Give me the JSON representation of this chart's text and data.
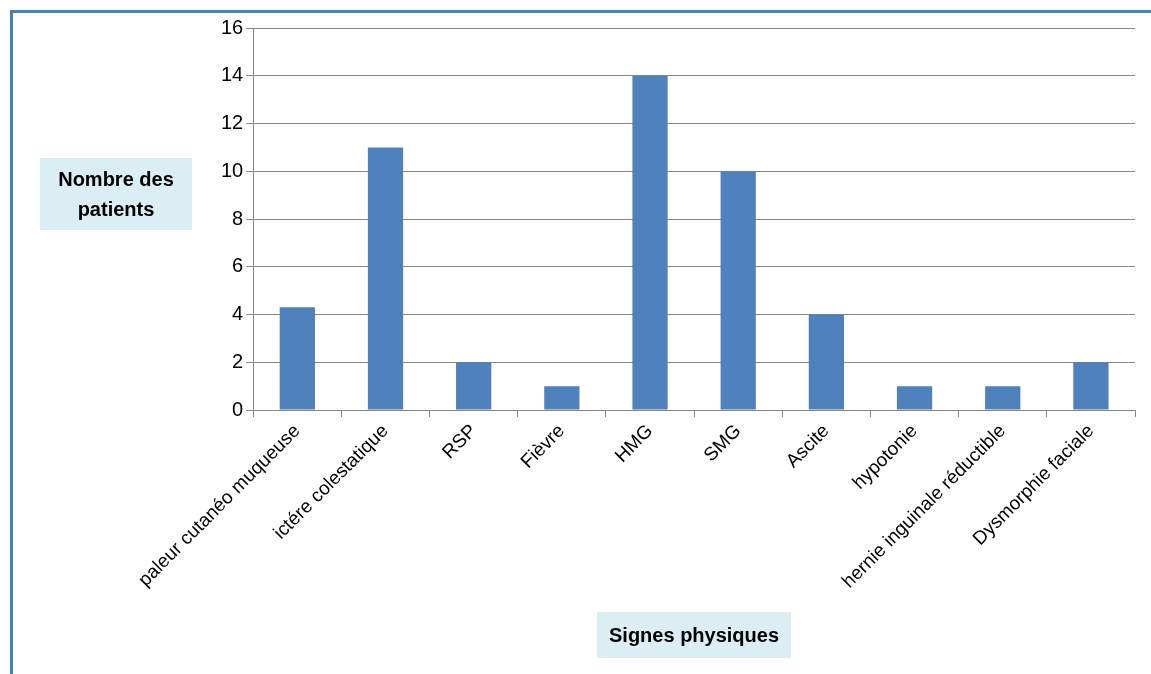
{
  "chart_data": {
    "type": "bar",
    "xlabel": "Signes physiques",
    "ylabel": "Nombre des patients",
    "categories": [
      "paleur cutanéo muqueuse",
      "ictére colestatique",
      "RSP",
      "Fièvre",
      "HMG",
      "SMG",
      "Ascite",
      "hypotonie",
      "hernie inguinale réductible",
      "Dysmorphie faciale"
    ],
    "values": [
      4.3,
      11,
      2,
      1,
      14,
      10,
      4,
      1,
      1,
      2
    ],
    "color": "#4f81bd",
    "ylim": [
      0,
      16
    ],
    "yticks": [
      0,
      2,
      4,
      6,
      8,
      10,
      12,
      14,
      16
    ],
    "grid": "y",
    "legend": false
  }
}
